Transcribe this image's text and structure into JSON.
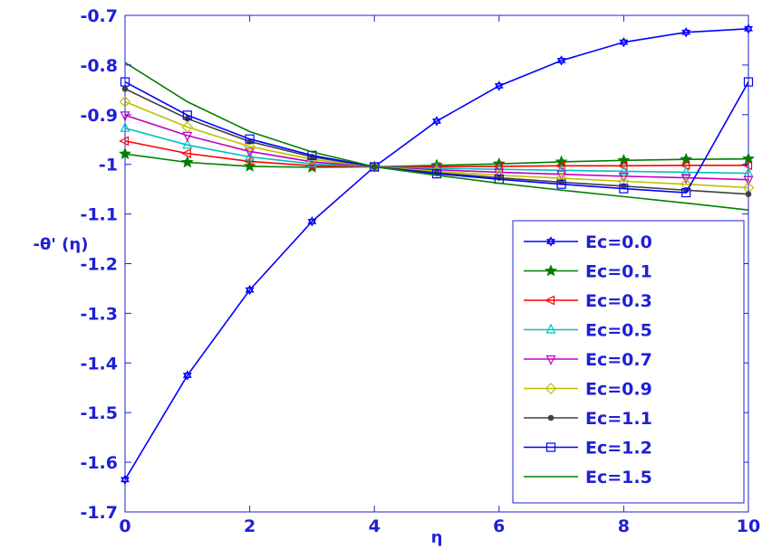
{
  "chart_data": {
    "type": "line",
    "title": "",
    "xlabel": "η",
    "ylabel": "-θ' (η)",
    "xlim": [
      0,
      10
    ],
    "ylim": [
      -1.7,
      -0.7
    ],
    "xticks": [
      0,
      2,
      4,
      6,
      8,
      10
    ],
    "xtick_labels": [
      "0",
      "2",
      "4",
      "6",
      "8",
      "10"
    ],
    "yticks": [
      -0.7,
      -0.8,
      -0.9,
      -1.0,
      -1.1,
      -1.2,
      -1.3,
      -1.4,
      -1.5,
      -1.6,
      -1.7
    ],
    "ytick_labels": [
      "-0.7",
      "-0.8",
      "-0.9",
      "-1",
      "-1.1",
      "-1.2",
      "-1.3",
      "-1.4",
      "-1.5",
      "-1.6",
      "-1.7"
    ],
    "grid": false,
    "legend_position": "bottom-right",
    "x": [
      0,
      1,
      2,
      3,
      4,
      5,
      6,
      7,
      8,
      9,
      10
    ],
    "series": [
      {
        "name": "Ec=0.0",
        "color": "#0000ff",
        "marker": "hexagram",
        "values": [
          -1.635,
          -1.425,
          -1.253,
          -1.115,
          -1.005,
          -0.913,
          -0.842,
          -0.791,
          -0.754,
          -0.734,
          -0.727
        ]
      },
      {
        "name": "Ec=0.1",
        "color": "#007f00",
        "marker": "star",
        "values": [
          -0.979,
          -0.996,
          -1.004,
          -1.006,
          -1.005,
          -1.002,
          -0.999,
          -0.995,
          -0.992,
          -0.99,
          -0.989
        ]
      },
      {
        "name": "Ec=0.3",
        "color": "#ff0000",
        "marker": "triangle-left",
        "values": [
          -0.953,
          -0.978,
          -0.994,
          -1.003,
          -1.005,
          -1.005,
          -1.004,
          -1.003,
          -1.003,
          -1.002,
          -1.002
        ]
      },
      {
        "name": "Ec=0.5",
        "color": "#00bfbf",
        "marker": "triangle-up",
        "values": [
          -0.927,
          -0.961,
          -0.985,
          -0.999,
          -1.005,
          -1.008,
          -1.01,
          -1.012,
          -1.014,
          -1.016,
          -1.018
        ]
      },
      {
        "name": "Ec=0.7",
        "color": "#bf00bf",
        "marker": "triangle-down",
        "values": [
          -0.901,
          -0.942,
          -0.974,
          -0.995,
          -1.005,
          -1.011,
          -1.016,
          -1.02,
          -1.024,
          -1.027,
          -1.031
        ]
      },
      {
        "name": "Ec=0.9",
        "color": "#bfbf00",
        "marker": "diamond",
        "values": [
          -0.874,
          -0.925,
          -0.964,
          -0.99,
          -1.005,
          -1.014,
          -1.022,
          -1.028,
          -1.034,
          -1.04,
          -1.047
        ]
      },
      {
        "name": "Ec=1.1",
        "color": "#404040",
        "marker": "dot",
        "values": [
          -0.848,
          -0.908,
          -0.954,
          -0.985,
          -1.005,
          -1.017,
          -1.027,
          -1.036,
          -1.044,
          -1.052,
          -1.06
        ]
      },
      {
        "name": "Ec=1.2",
        "color": "#0000ff",
        "marker": "square",
        "values": [
          -0.834,
          -0.901,
          -0.949,
          -0.982,
          -1.005,
          -1.019,
          -1.03,
          -1.04,
          -1.049,
          -1.057,
          -0.834
        ]
      },
      {
        "name": "Ec=1.5",
        "color": "#007f00",
        "marker": "none",
        "values": [
          -0.795,
          -0.874,
          -0.934,
          -0.975,
          -1.005,
          -1.022,
          -1.038,
          -1.052,
          -1.065,
          -1.078,
          -1.092
        ]
      }
    ]
  }
}
